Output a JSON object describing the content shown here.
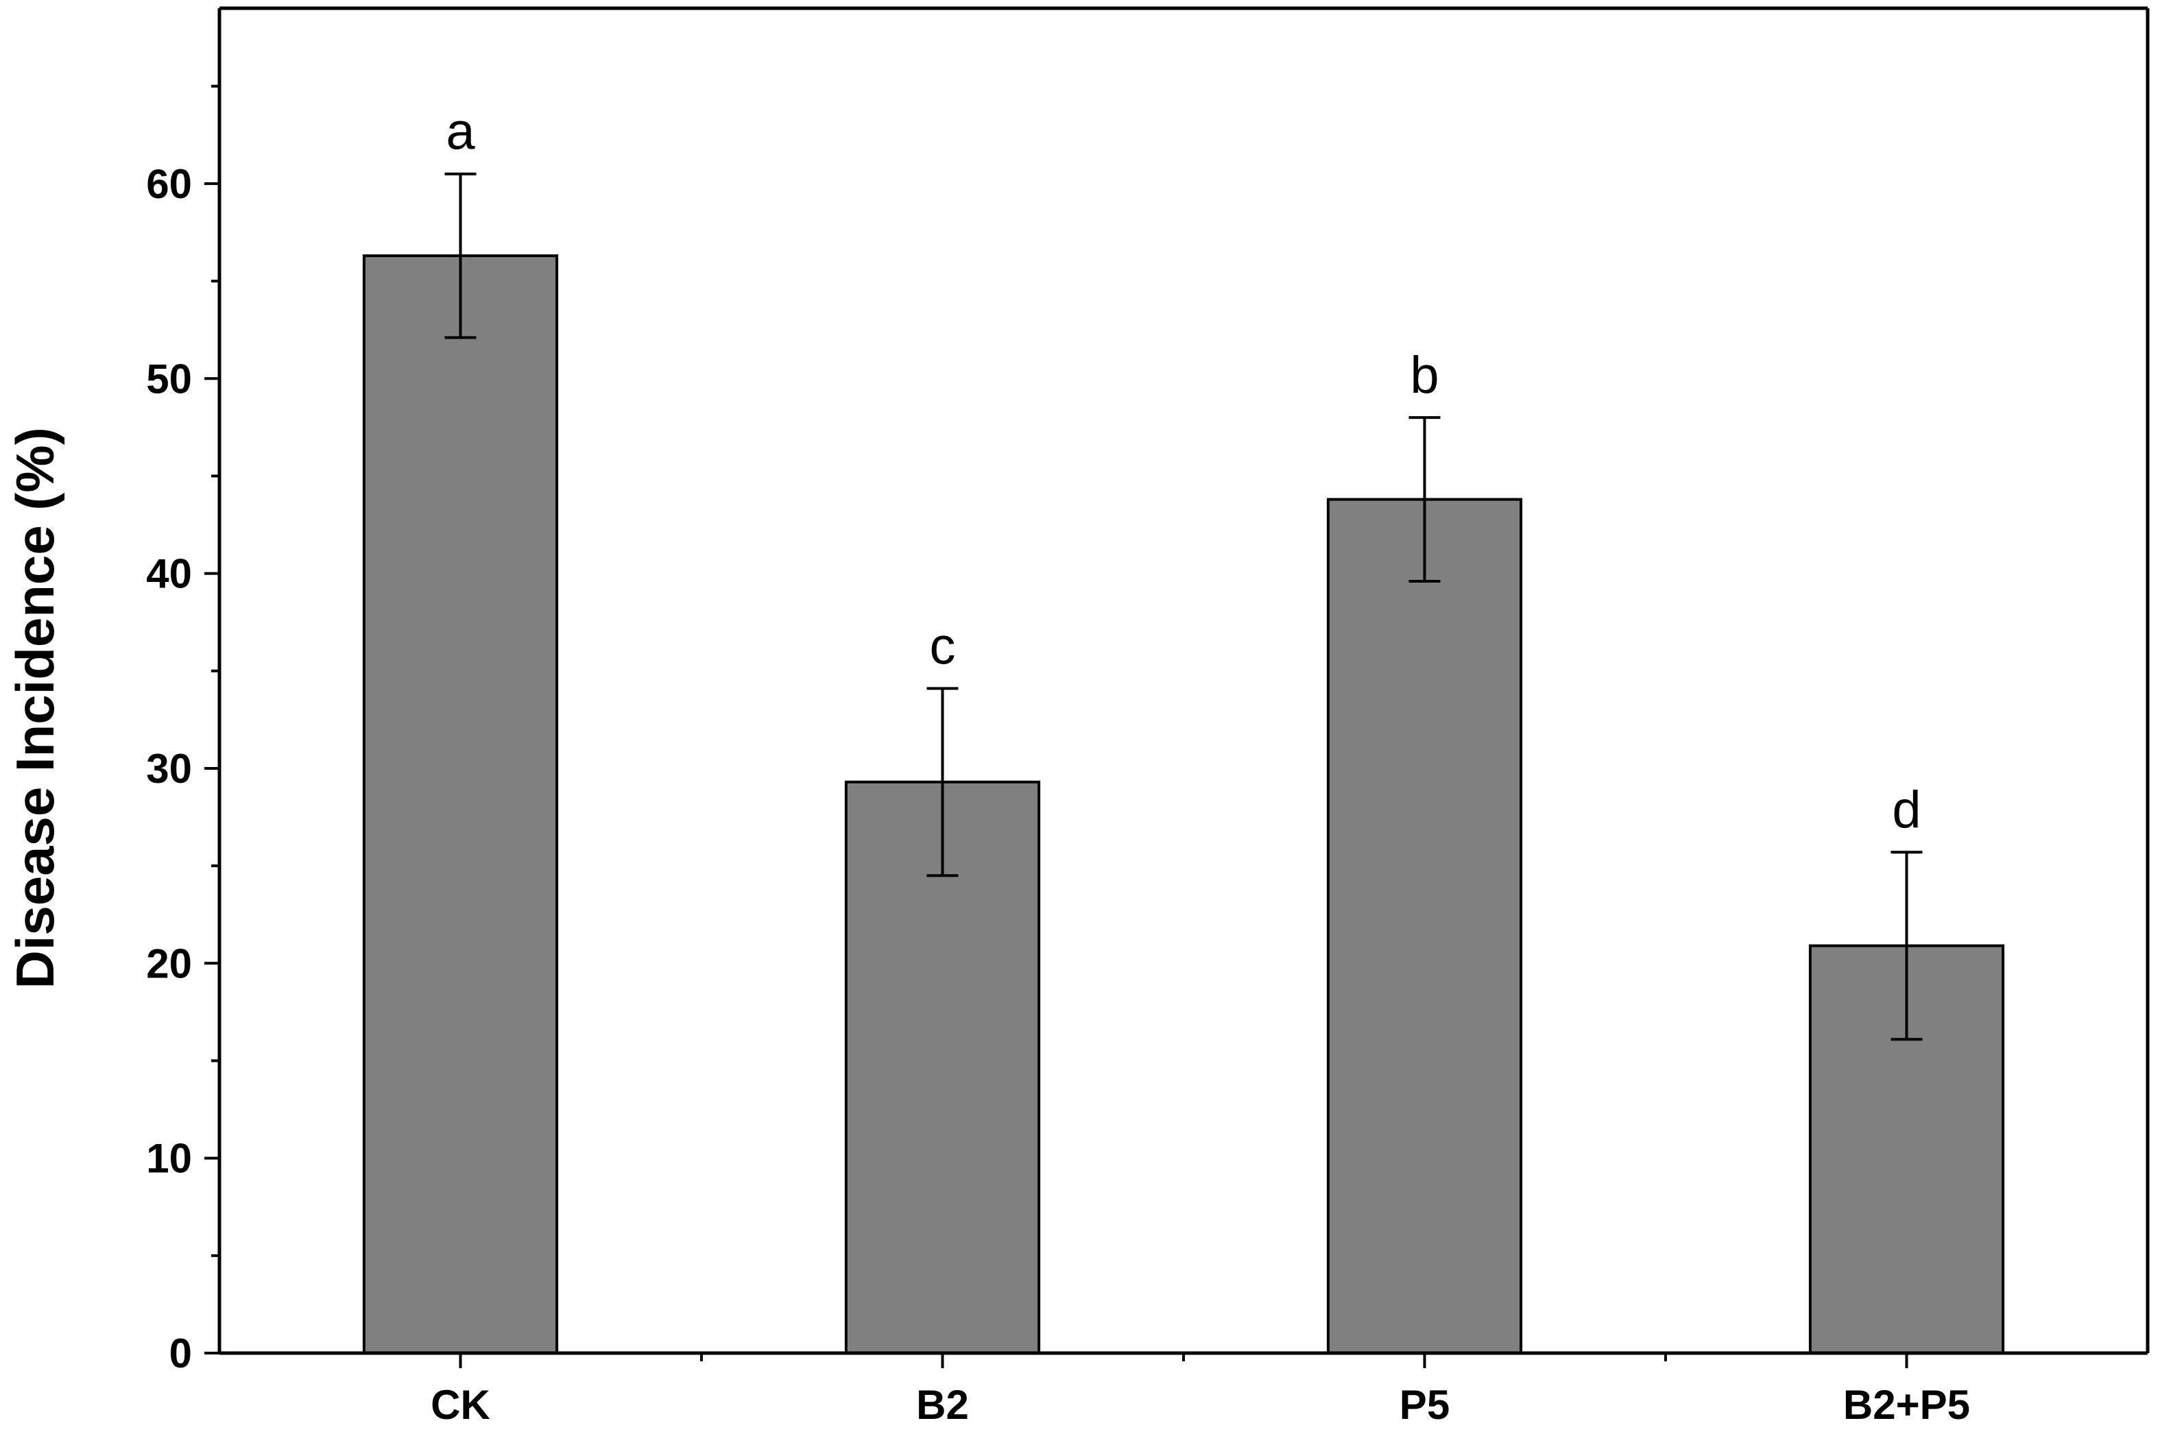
{
  "chart_data": {
    "type": "bar",
    "title": "",
    "xlabel": "",
    "ylabel": "Disease Incidence (%)",
    "categories": [
      "CK",
      "B2",
      "P5",
      "B2+P5"
    ],
    "values": [
      56.3,
      29.3,
      43.8,
      20.9
    ],
    "errors": [
      4.2,
      4.8,
      4.2,
      4.8
    ],
    "significance": [
      "a",
      "c",
      "b",
      "d"
    ],
    "ylim": [
      0,
      69
    ],
    "yticks": [
      0,
      10,
      20,
      30,
      40,
      50,
      60
    ],
    "ytick_labels": [
      "0",
      "10",
      "20",
      "30",
      "40",
      "50",
      "60"
    ],
    "grid": false,
    "legend": "none",
    "bar_color": "#808080",
    "edge_color": "#000000"
  }
}
